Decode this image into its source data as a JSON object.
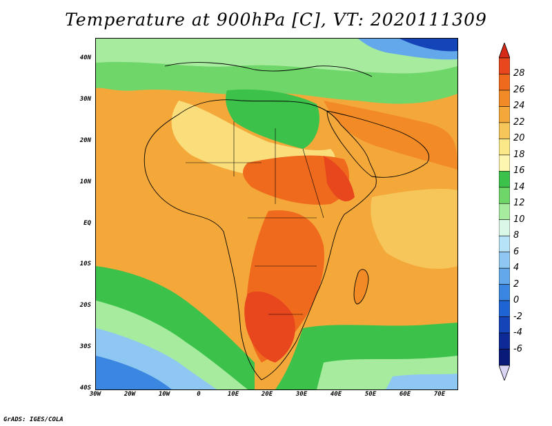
{
  "title": "Temperature at 900hPa [C], VT: 2020111309",
  "credit": "GrADS: IGES/COLA",
  "map": {
    "lon_range": [
      -30,
      75
    ],
    "lat_range": [
      -40,
      45
    ],
    "lat_ticks": [
      {
        "value": 40,
        "label": "40N"
      },
      {
        "value": 30,
        "label": "30N"
      },
      {
        "value": 20,
        "label": "20N"
      },
      {
        "value": 10,
        "label": "10N"
      },
      {
        "value": 0,
        "label": "EQ"
      },
      {
        "value": -10,
        "label": "10S"
      },
      {
        "value": -20,
        "label": "20S"
      },
      {
        "value": -30,
        "label": "30S"
      },
      {
        "value": -40,
        "label": "40S"
      }
    ],
    "lon_ticks": [
      {
        "value": -30,
        "label": "30W"
      },
      {
        "value": -20,
        "label": "20W"
      },
      {
        "value": -10,
        "label": "10W"
      },
      {
        "value": 0,
        "label": "0"
      },
      {
        "value": 10,
        "label": "10E"
      },
      {
        "value": 20,
        "label": "20E"
      },
      {
        "value": 30,
        "label": "30E"
      },
      {
        "value": 40,
        "label": "40E"
      },
      {
        "value": 50,
        "label": "50E"
      },
      {
        "value": 60,
        "label": "60E"
      },
      {
        "value": 70,
        "label": "70E"
      }
    ]
  },
  "colorbar": {
    "labels": [
      "28",
      "26",
      "24",
      "22",
      "20",
      "18",
      "16",
      "14",
      "12",
      "10",
      "8",
      "6",
      "4",
      "2",
      "0",
      "-2",
      "-4",
      "-6"
    ],
    "colors": [
      "#e8461c",
      "#f06a1e",
      "#f28a26",
      "#f4a83a",
      "#f7c65a",
      "#fbe888",
      "#fdf6b0",
      "#3cc24a",
      "#6fd66a",
      "#a7ec9e",
      "#d9f8e8",
      "#b7e3f8",
      "#8ec8f2",
      "#62a8ea",
      "#3a86e0",
      "#1e64d2",
      "#1444b8",
      "#0e2a96",
      "#0a1a78"
    ],
    "over_color": "#d52a16",
    "under_color": "#dcd6f6"
  }
}
